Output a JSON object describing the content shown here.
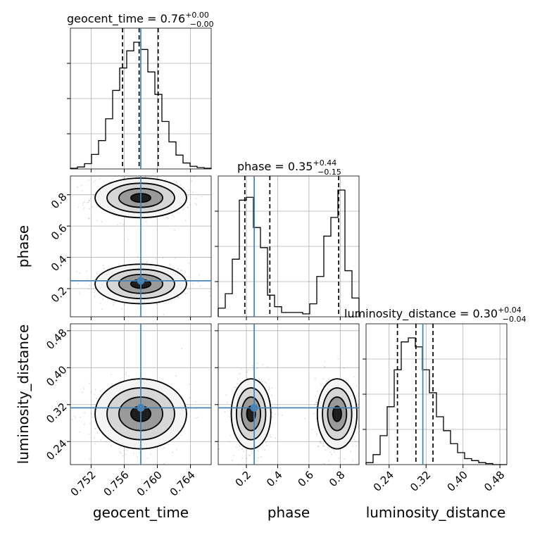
{
  "chart_data": {
    "type": "corner",
    "parameters": [
      "geocent_time",
      "phase",
      "luminosity_distance"
    ],
    "titles": [
      {
        "name": "geocent_time",
        "value": "0.76",
        "plus": "+0.00",
        "minus": "−0.00"
      },
      {
        "name": "phase",
        "value": "0.35",
        "plus": "+0.44",
        "minus": "−0.15"
      },
      {
        "name": "luminosity_distance",
        "value": "0.30",
        "plus": "+0.04",
        "minus": "−0.04"
      }
    ],
    "axis_labels": [
      "geocent_time",
      "phase",
      "luminosity_distance"
    ],
    "ranges": [
      [
        0.7495,
        0.7665
      ],
      [
        0.02,
        0.92
      ],
      [
        0.19,
        0.495
      ]
    ],
    "ticks": [
      {
        "values": [
          0.752,
          0.756,
          0.76,
          0.764
        ],
        "labels": [
          "0.752",
          "0.756",
          "0.760",
          "0.764"
        ]
      },
      {
        "values": [
          0.2,
          0.4,
          0.6,
          0.8
        ],
        "labels": [
          "0.2",
          "0.4",
          "0.6",
          "0.8"
        ]
      },
      {
        "values": [
          0.24,
          0.32,
          0.4,
          0.48
        ],
        "labels": [
          "0.24",
          "0.32",
          "0.40",
          "0.48"
        ]
      }
    ],
    "truths": [
      0.758,
      0.25,
      0.313
    ],
    "quantiles": [
      [
        0.7558,
        0.7578,
        0.7601
      ],
      [
        0.19,
        0.35,
        0.79
      ],
      [
        0.258,
        0.298,
        0.335
      ]
    ],
    "histograms": [
      {
        "bin_edges": [
          0.7495,
          0.75035,
          0.7512,
          0.75205,
          0.7529,
          0.75375,
          0.7546,
          0.75545,
          0.7563,
          0.75715,
          0.758,
          0.75885,
          0.7597,
          0.76055,
          0.7614,
          0.76225,
          0.7631,
          0.76395,
          0.7648,
          0.76565,
          0.7665
        ],
        "counts": [
          1,
          3,
          8,
          22,
          43,
          76,
          119,
          153,
          179,
          192,
          181,
          147,
          113,
          72,
          41,
          21,
          9,
          4,
          2,
          1
        ]
      },
      {
        "bin_edges": [
          0.02,
          0.065,
          0.11,
          0.155,
          0.2,
          0.245,
          0.29,
          0.335,
          0.38,
          0.425,
          0.47,
          0.515,
          0.56,
          0.605,
          0.65,
          0.695,
          0.74,
          0.785,
          0.83,
          0.875,
          0.92
        ],
        "counts": [
          6,
          16,
          40,
          81,
          83,
          62,
          48,
          15,
          7,
          3,
          3,
          3,
          2,
          9,
          28,
          56,
          69,
          88,
          32,
          13
        ]
      },
      {
        "bin_edges": [
          0.19,
          0.20525,
          0.2205,
          0.23575,
          0.251,
          0.26625,
          0.2815,
          0.29675,
          0.312,
          0.32725,
          0.3425,
          0.35775,
          0.373,
          0.38825,
          0.4035,
          0.41875,
          0.434,
          0.44925,
          0.4645,
          0.47975,
          0.495
        ],
        "counts": [
          2,
          10,
          29,
          58,
          95,
          123,
          127,
          118,
          95,
          72,
          48,
          34,
          21,
          12,
          6,
          4,
          2,
          1,
          0,
          0
        ]
      }
    ],
    "modes": {
      "geocent_time": [
        0.758
      ],
      "phase": [
        0.23,
        0.78
      ],
      "luminosity_distance": [
        0.3
      ]
    }
  }
}
